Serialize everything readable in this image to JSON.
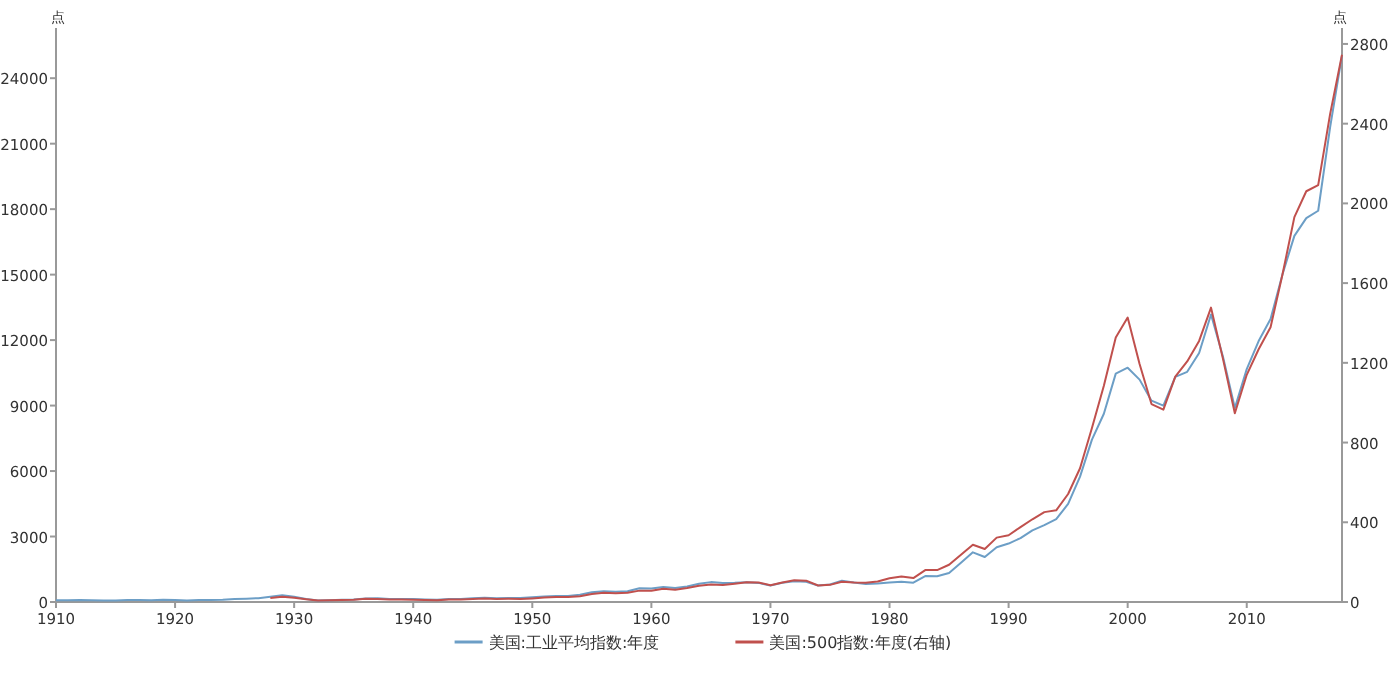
{
  "chart_data": {
    "type": "line",
    "ylabel": "点",
    "y2label": "点",
    "xlim": [
      1910,
      2018
    ],
    "xticks": [
      1910,
      1920,
      1930,
      1940,
      1950,
      1960,
      1970,
      1980,
      1990,
      2000,
      2010
    ],
    "ylim": [
      0,
      26300
    ],
    "yticks": [
      0,
      3000,
      6000,
      9000,
      12000,
      15000,
      18000,
      21000,
      24000
    ],
    "y2lim": [
      0,
      2880
    ],
    "y2ticks": [
      0,
      400,
      800,
      1200,
      1600,
      2000,
      2400,
      2800
    ],
    "legend": "bottom",
    "grid": false,
    "marker": "none",
    "line_style": "solid",
    "series": [
      {
        "name": "美国:工业平均指数:年度",
        "color": "#6c9ec6",
        "x": [
          1910,
          1911,
          1912,
          1913,
          1914,
          1915,
          1916,
          1917,
          1918,
          1919,
          1920,
          1921,
          1922,
          1923,
          1924,
          1925,
          1926,
          1927,
          1928,
          1929,
          1930,
          1931,
          1932,
          1933,
          1934,
          1935,
          1936,
          1937,
          1938,
          1939,
          1940,
          1941,
          1942,
          1943,
          1944,
          1945,
          1946,
          1947,
          1948,
          1949,
          1950,
          1951,
          1952,
          1953,
          1954,
          1955,
          1956,
          1957,
          1958,
          1959,
          1960,
          1961,
          1962,
          1963,
          1964,
          1965,
          1966,
          1967,
          1968,
          1969,
          1970,
          1971,
          1972,
          1973,
          1974,
          1975,
          1976,
          1977,
          1978,
          1979,
          1980,
          1981,
          1982,
          1983,
          1984,
          1985,
          1986,
          1987,
          1988,
          1989,
          1990,
          1991,
          1992,
          1993,
          1994,
          1995,
          1996,
          1997,
          1998,
          1999,
          2000,
          2001,
          2002,
          2003,
          2004,
          2005,
          2006,
          2007,
          2008,
          2009,
          2010,
          2011,
          2012,
          2013,
          2014,
          2015,
          2016,
          2017,
          2018
        ],
        "values": [
          85,
          81,
          87,
          80,
          73,
          74,
          95,
          95,
          82,
          99,
          90,
          74,
          92,
          95,
          99,
          133,
          153,
          175,
          238,
          311,
          236,
          138,
          64,
          84,
          98,
          120,
          158,
          167,
          132,
          142,
          135,
          120,
          105,
          134,
          143,
          169,
          191,
          177,
          179,
          180,
          216,
          257,
          270,
          276,
          334,
          443,
          493,
          475,
          492,
          633,
          618,
          691,
          640,
          715,
          834,
          911,
          873,
          879,
          906,
          876,
          753,
          885,
          950,
          923,
          759,
          802,
          974,
          894,
          821,
          844,
          891,
          933,
          884,
          1190,
          1179,
          1329,
          1793,
          2276,
          2061,
          2510,
          2679,
          2929,
          3285,
          3522,
          3794,
          4494,
          5743,
          7441,
          8626,
          10465,
          10735,
          10189,
          9226,
          8994,
          10317,
          10547,
          11409,
          13170,
          11253,
          8885,
          10669,
          11958,
          12966,
          15010,
          16777,
          17587,
          17927,
          21750,
          25047
        ]
      },
      {
        "name": "美国:500指数:年度(右轴)",
        "color": "#c0504d",
        "axis": "y2",
        "x": [
          1928,
          1929,
          1930,
          1931,
          1932,
          1933,
          1934,
          1935,
          1936,
          1937,
          1938,
          1939,
          1940,
          1941,
          1942,
          1943,
          1944,
          1945,
          1946,
          1947,
          1948,
          1949,
          1950,
          1951,
          1952,
          1953,
          1954,
          1955,
          1956,
          1957,
          1958,
          1959,
          1960,
          1961,
          1962,
          1963,
          1964,
          1965,
          1966,
          1967,
          1968,
          1969,
          1970,
          1971,
          1972,
          1973,
          1974,
          1975,
          1976,
          1977,
          1978,
          1979,
          1980,
          1981,
          1982,
          1983,
          1984,
          1985,
          1986,
          1987,
          1988,
          1989,
          1990,
          1991,
          1992,
          1993,
          1994,
          1995,
          1996,
          1997,
          1998,
          1999,
          2000,
          2001,
          2002,
          2003,
          2004,
          2005,
          2006,
          2007,
          2008,
          2009,
          2010,
          2011,
          2012,
          2013,
          2014,
          2015,
          2016,
          2017,
          2018
        ],
        "values": [
          20,
          26,
          21,
          14,
          7,
          9,
          10,
          11,
          16,
          15,
          12,
          12,
          11,
          10,
          9,
          12,
          13,
          15,
          17,
          15,
          16,
          15,
          18,
          22,
          25,
          25,
          29,
          40,
          46,
          44,
          46,
          57,
          56,
          66,
          62,
          70,
          82,
          88,
          85,
          92,
          99,
          98,
          84,
          98,
          109,
          107,
          83,
          86,
          102,
          98,
          96,
          103,
          119,
          128,
          120,
          160,
          160,
          187,
          237,
          287,
          266,
          323,
          335,
          376,
          415,
          451,
          460,
          542,
          671,
          873,
          1085,
          1327,
          1427,
          1194,
          993,
          965,
          1131,
          1207,
          1310,
          1477,
          1221,
          947,
          1140,
          1268,
          1379,
          1643,
          1931,
          2061,
          2092,
          2448,
          2746
        ]
      }
    ]
  }
}
